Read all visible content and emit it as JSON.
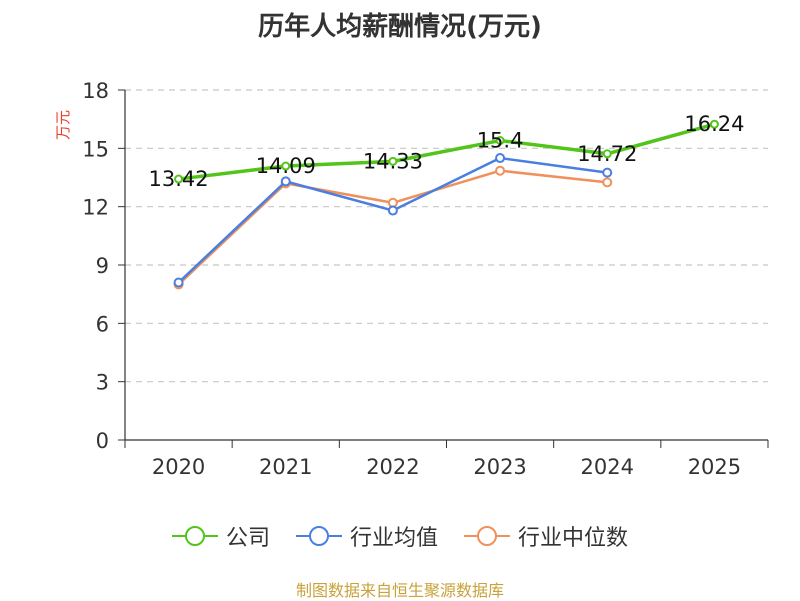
{
  "title": "历年人均薪酬情况(万元)",
  "footer": "制图数据来自恒生聚源数据库",
  "chart_data": {
    "type": "line",
    "title": "历年人均薪酬情况(万元)",
    "ylabel": "万元",
    "xlabel": "",
    "categories": [
      "2020",
      "2021",
      "2022",
      "2023",
      "2024",
      "2025"
    ],
    "ylim": [
      0,
      18
    ],
    "yticks": [
      0,
      3,
      6,
      9,
      12,
      15,
      18
    ],
    "grid": true,
    "legend_position": "bottom",
    "series": [
      {
        "name": "公司",
        "color": "#52c41a",
        "values": [
          13.42,
          14.09,
          14.33,
          15.4,
          14.72,
          16.24
        ],
        "labels": [
          "13.42",
          "14.09",
          "14.33",
          "15.4",
          "14.72",
          "16.24"
        ]
      },
      {
        "name": "行业均值",
        "color": "#4a7fe0",
        "values": [
          8.1,
          13.3,
          11.8,
          14.5,
          13.75,
          null
        ]
      },
      {
        "name": "行业中位数",
        "color": "#f0905a",
        "values": [
          8.0,
          13.2,
          12.2,
          13.85,
          13.25,
          null
        ]
      }
    ]
  }
}
